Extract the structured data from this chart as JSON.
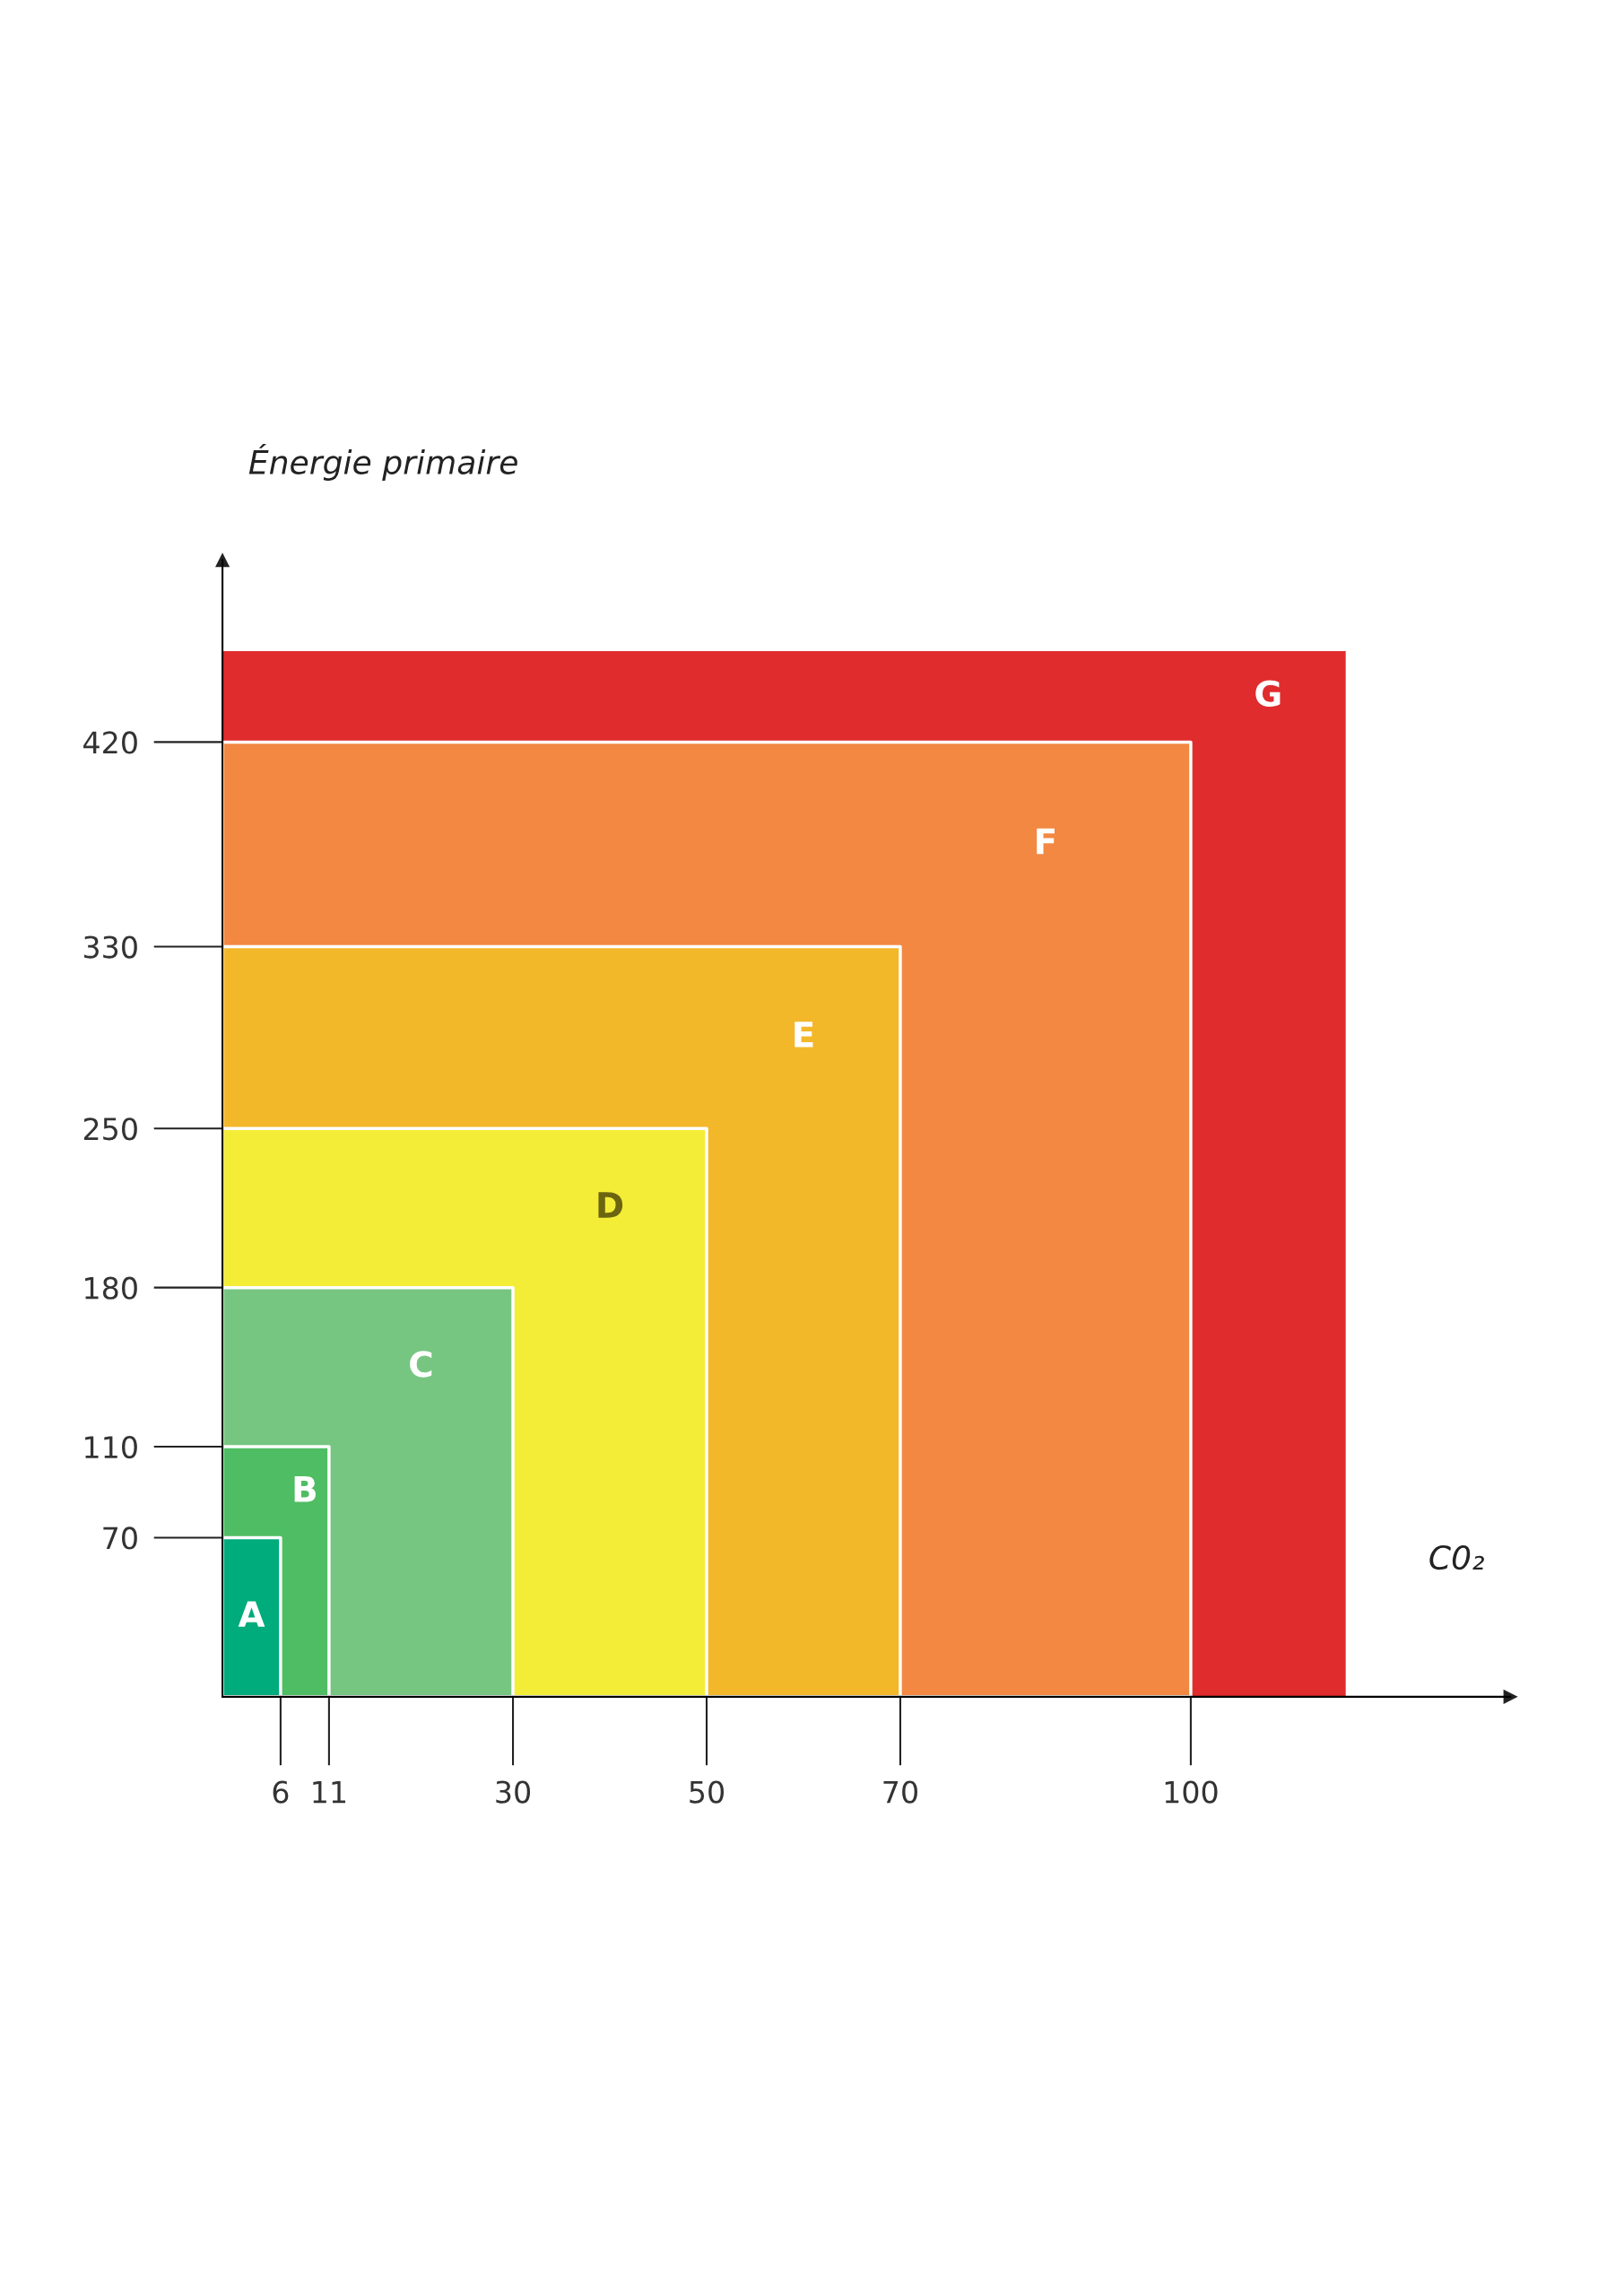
{
  "chart_data": {
    "type": "area",
    "xlabel": "C0₂",
    "ylabel": "Énergie primaire",
    "series": [
      {
        "name": "A",
        "color": "#00ab7c",
        "x": [
          0,
          6
        ],
        "values": [
          70,
          70
        ]
      },
      {
        "name": "B",
        "color": "#4fbd63",
        "x": [
          0,
          11
        ],
        "values": [
          110,
          110
        ]
      },
      {
        "name": "C",
        "color": "#76c682",
        "x": [
          0,
          30
        ],
        "values": [
          180,
          180
        ]
      },
      {
        "name": "D",
        "color": "#f3ed37",
        "x": [
          0,
          50
        ],
        "values": [
          250,
          250
        ]
      },
      {
        "name": "E",
        "color": "#f3b72a",
        "x": [
          0,
          70
        ],
        "values": [
          330,
          330
        ]
      },
      {
        "name": "F",
        "color": "#f28842",
        "x": [
          0,
          100
        ],
        "values": [
          420,
          420
        ]
      },
      {
        "name": "G",
        "color": "#e02c2d",
        "x": [
          0,
          116
        ],
        "values": [
          460,
          460
        ]
      }
    ],
    "xlim": [
      0,
      133
    ],
    "ylim": [
      0,
      500
    ],
    "xticks": [
      6,
      11,
      30,
      50,
      70,
      100
    ],
    "yticks": [
      70,
      110,
      180,
      250,
      330,
      420
    ]
  }
}
